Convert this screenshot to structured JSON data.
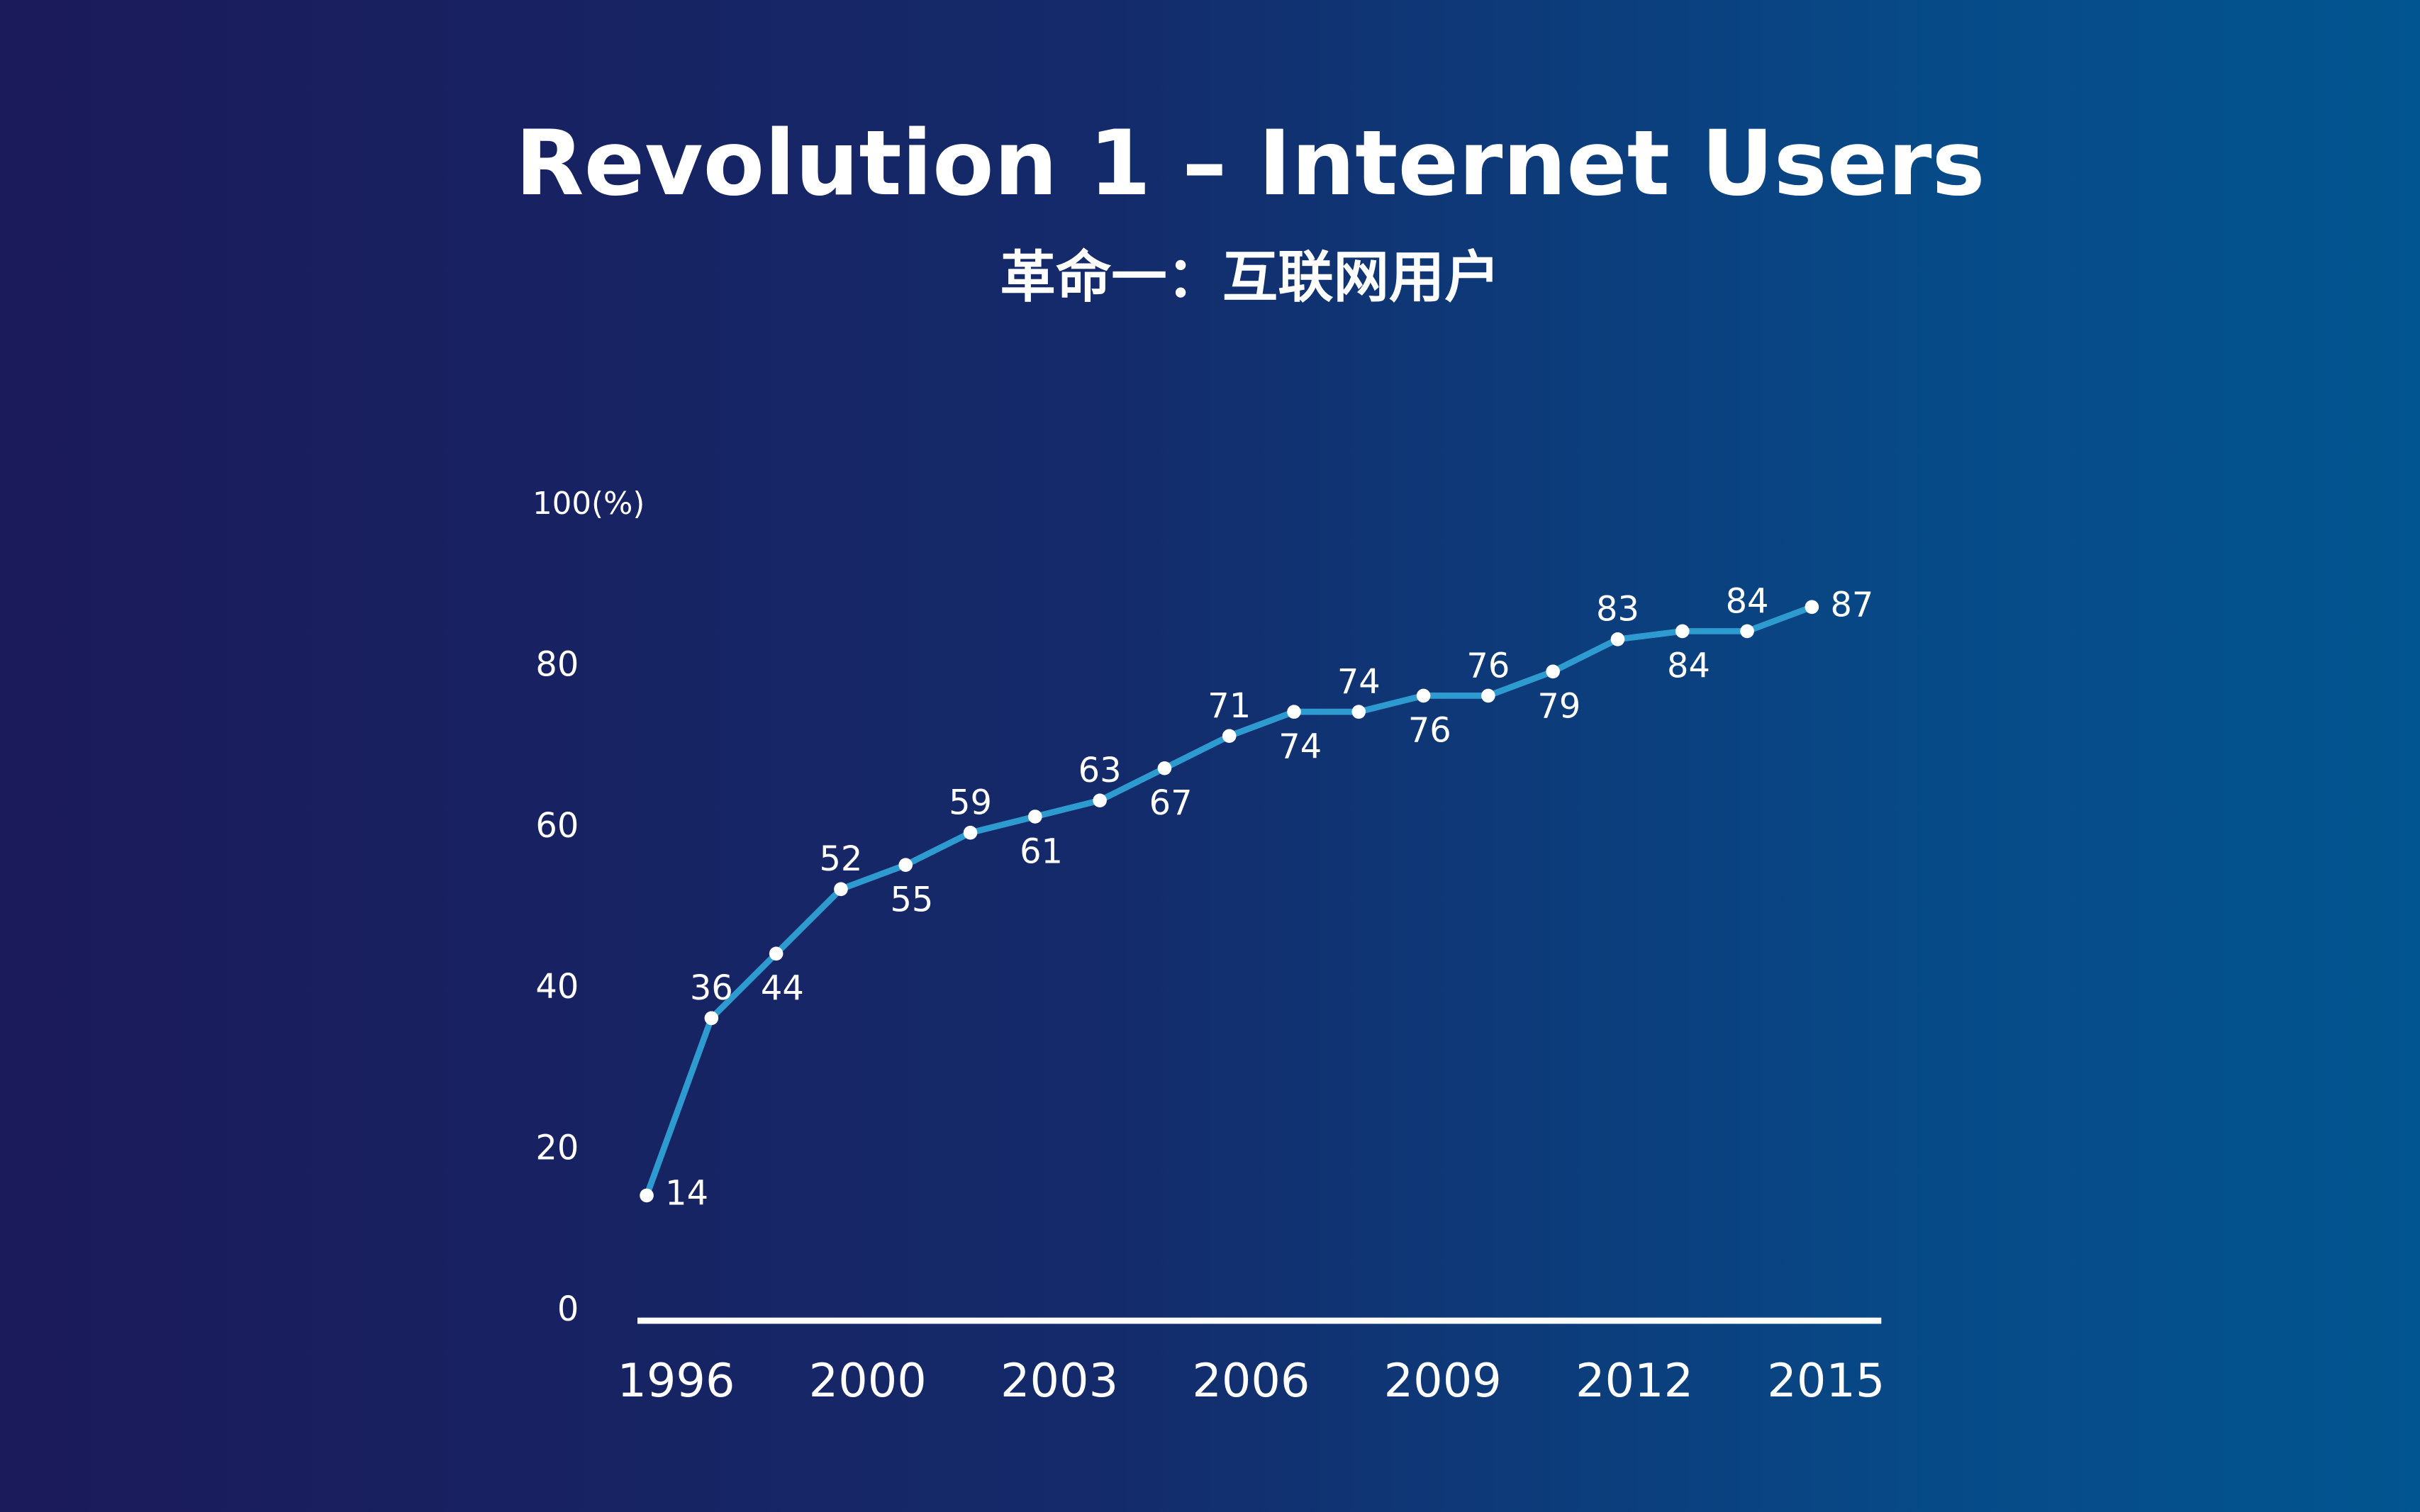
{
  "title": "Revolution 1 – Internet Users",
  "subtitle": "革命一：互联网用户",
  "chart_data": {
    "type": "line",
    "title": "Revolution 1 – Internet Users",
    "subtitle": "革命一：互联网用户",
    "ylabel": "100(%)",
    "ylim": [
      0,
      100
    ],
    "yticks": [
      "0",
      "20",
      "40",
      "60",
      "80"
    ],
    "xticks": [
      "1996",
      "2000",
      "2003",
      "2006",
      "2009",
      "2012",
      "2015"
    ],
    "grid": false,
    "line_color": "#2e9bd0",
    "series": [
      {
        "values": [
          14,
          36,
          44,
          52,
          55,
          59,
          61,
          63,
          67,
          71,
          74,
          74,
          76,
          76,
          79,
          83,
          84,
          84,
          87
        ],
        "label_position": [
          "right",
          "above",
          "below",
          "above",
          "below",
          "above",
          "below",
          "above",
          "below",
          "above",
          "below",
          "above",
          "below",
          "above",
          "below",
          "above",
          "below",
          "above",
          "right"
        ]
      }
    ]
  }
}
